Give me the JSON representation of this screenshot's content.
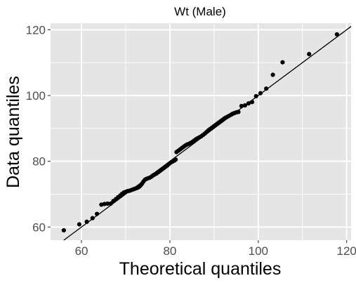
{
  "chart_data": {
    "type": "scatter",
    "title": "Wt (Male)",
    "xlabel": "Theoretical quantiles",
    "ylabel": "Data quantiles",
    "xlim": [
      53,
      121
    ],
    "ylim": [
      56,
      122
    ],
    "x_ticks": [
      60,
      80,
      100,
      120
    ],
    "y_ticks": [
      60,
      80,
      100,
      120
    ],
    "x_tick_labels": [
      "60",
      "80",
      "100",
      "120"
    ],
    "y_tick_labels": [
      "60",
      "80",
      "100",
      "120"
    ],
    "grid": true,
    "reference_line": {
      "slope": 1,
      "intercept": 0
    },
    "colors": {
      "panel": "#e5e5e5",
      "grid": "#ffffff",
      "points": "#000000",
      "line": "#000000"
    },
    "series": [
      {
        "points": [
          [
            56.0,
            59.0
          ],
          [
            59.5,
            60.8
          ],
          [
            61.2,
            61.6
          ],
          [
            62.5,
            62.7
          ],
          [
            63.5,
            64.0
          ],
          [
            64.5,
            66.8
          ],
          [
            65.2,
            67.0
          ],
          [
            65.9,
            67.1
          ],
          [
            66.6,
            67.1
          ],
          [
            67.2,
            67.9
          ],
          [
            67.8,
            68.5
          ],
          [
            68.3,
            69.1
          ],
          [
            68.8,
            69.6
          ],
          [
            69.2,
            70.1
          ],
          [
            69.6,
            70.5
          ],
          [
            70.0,
            70.7
          ],
          [
            70.4,
            70.9
          ],
          [
            70.8,
            71.0
          ],
          [
            71.2,
            71.2
          ],
          [
            71.6,
            71.4
          ],
          [
            72.0,
            71.6
          ],
          [
            72.4,
            71.8
          ],
          [
            72.8,
            72.0
          ],
          [
            73.1,
            72.3
          ],
          [
            73.4,
            72.7
          ],
          [
            73.7,
            73.2
          ],
          [
            74.0,
            73.8
          ],
          [
            74.3,
            74.3
          ],
          [
            74.6,
            74.6
          ],
          [
            75.0,
            74.8
          ],
          [
            75.4,
            75.0
          ],
          [
            75.8,
            75.3
          ],
          [
            76.2,
            75.7
          ],
          [
            76.6,
            76.0
          ],
          [
            77.0,
            76.3
          ],
          [
            77.4,
            76.7
          ],
          [
            77.8,
            77.1
          ],
          [
            78.2,
            77.5
          ],
          [
            78.6,
            77.9
          ],
          [
            79.0,
            78.3
          ],
          [
            79.4,
            78.7
          ],
          [
            79.8,
            79.2
          ],
          [
            80.2,
            79.6
          ],
          [
            80.6,
            79.9
          ],
          [
            81.0,
            80.2
          ],
          [
            81.3,
            80.5
          ],
          [
            81.5,
            82.8
          ],
          [
            81.9,
            83.2
          ],
          [
            82.3,
            83.6
          ],
          [
            82.7,
            84.0
          ],
          [
            83.1,
            84.4
          ],
          [
            83.5,
            84.8
          ],
          [
            83.9,
            85.1
          ],
          [
            84.3,
            85.3
          ],
          [
            84.7,
            85.6
          ],
          [
            85.1,
            85.9
          ],
          [
            85.5,
            86.3
          ],
          [
            85.9,
            86.7
          ],
          [
            86.3,
            87.0
          ],
          [
            86.7,
            87.3
          ],
          [
            87.1,
            87.6
          ],
          [
            87.5,
            88.0
          ],
          [
            87.9,
            88.4
          ],
          [
            88.3,
            88.9
          ],
          [
            88.7,
            89.4
          ],
          [
            89.1,
            89.8
          ],
          [
            89.5,
            90.2
          ],
          [
            89.9,
            90.6
          ],
          [
            90.3,
            91.0
          ],
          [
            90.7,
            91.4
          ],
          [
            91.1,
            91.8
          ],
          [
            91.5,
            92.2
          ],
          [
            91.9,
            92.6
          ],
          [
            92.3,
            93.0
          ],
          [
            92.7,
            93.3
          ],
          [
            93.1,
            93.6
          ],
          [
            93.5,
            93.9
          ],
          [
            93.9,
            94.2
          ],
          [
            94.3,
            94.5
          ],
          [
            94.7,
            94.7
          ],
          [
            95.1,
            94.9
          ],
          [
            95.5,
            95.0
          ],
          [
            96.2,
            96.8
          ],
          [
            97.0,
            97.0
          ],
          [
            97.8,
            97.6
          ],
          [
            98.6,
            98.0
          ],
          [
            99.5,
            99.8
          ],
          [
            100.5,
            100.7
          ],
          [
            101.8,
            102.1
          ],
          [
            103.3,
            106.3
          ],
          [
            105.5,
            110.1
          ],
          [
            111.5,
            112.6
          ],
          [
            117.8,
            118.6
          ]
        ]
      }
    ]
  }
}
